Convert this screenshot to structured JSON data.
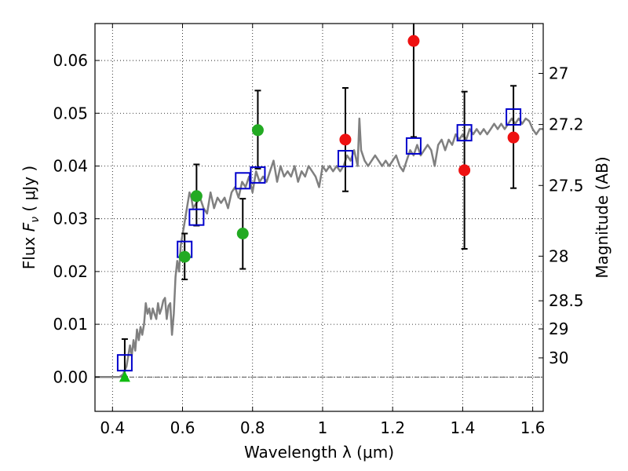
{
  "chart_data": {
    "type": "scatter",
    "xlabel": "Wavelength  λ (μm)",
    "ylabel": "Flux  F_ν  ( μJy )",
    "y2label": "Magnitude (AB)",
    "xlim": [
      0.35,
      1.63
    ],
    "ylim": [
      -0.0065,
      0.067
    ],
    "grid": true,
    "x_ticks": [
      {
        "value": 0.4,
        "label": "0.4"
      },
      {
        "value": 0.6,
        "label": "0.6"
      },
      {
        "value": 0.8,
        "label": "0.8"
      },
      {
        "value": 1.0,
        "label": "1"
      },
      {
        "value": 1.2,
        "label": "1.2"
      },
      {
        "value": 1.4,
        "label": "1.4"
      },
      {
        "value": 1.6,
        "label": "1.6"
      }
    ],
    "y_ticks": [
      {
        "value": 0.0,
        "label": "0.00"
      },
      {
        "value": 0.01,
        "label": "0.01"
      },
      {
        "value": 0.02,
        "label": "0.02"
      },
      {
        "value": 0.03,
        "label": "0.03"
      },
      {
        "value": 0.04,
        "label": "0.04"
      },
      {
        "value": 0.05,
        "label": "0.05"
      },
      {
        "value": 0.06,
        "label": "0.06"
      }
    ],
    "mag_ticks": [
      {
        "value": 27,
        "label": "27"
      },
      {
        "value": 27.2,
        "label": "27.2"
      },
      {
        "value": 27.5,
        "label": "27.5"
      },
      {
        "value": 28,
        "label": "28"
      },
      {
        "value": 28.5,
        "label": "28.5"
      },
      {
        "value": 29,
        "label": "29"
      },
      {
        "value": 30,
        "label": "30"
      }
    ],
    "model_spectrum": {
      "color": "#808080",
      "x": [
        0.35,
        0.42,
        0.43,
        0.44,
        0.45,
        0.455,
        0.46,
        0.465,
        0.47,
        0.475,
        0.48,
        0.485,
        0.49,
        0.495,
        0.5,
        0.505,
        0.51,
        0.515,
        0.52,
        0.525,
        0.53,
        0.535,
        0.54,
        0.545,
        0.55,
        0.555,
        0.56,
        0.565,
        0.57,
        0.575,
        0.58,
        0.585,
        0.59,
        0.595,
        0.6,
        0.605,
        0.61,
        0.615,
        0.62,
        0.625,
        0.63,
        0.64,
        0.65,
        0.66,
        0.67,
        0.68,
        0.69,
        0.7,
        0.71,
        0.72,
        0.73,
        0.74,
        0.75,
        0.76,
        0.77,
        0.78,
        0.79,
        0.8,
        0.81,
        0.82,
        0.83,
        0.84,
        0.85,
        0.86,
        0.87,
        0.88,
        0.89,
        0.9,
        0.91,
        0.92,
        0.93,
        0.94,
        0.95,
        0.96,
        0.97,
        0.98,
        0.99,
        1.0,
        1.01,
        1.02,
        1.03,
        1.04,
        1.05,
        1.06,
        1.07,
        1.08,
        1.09,
        1.1,
        1.105,
        1.11,
        1.12,
        1.13,
        1.14,
        1.15,
        1.16,
        1.17,
        1.18,
        1.19,
        1.2,
        1.21,
        1.22,
        1.23,
        1.24,
        1.25,
        1.26,
        1.27,
        1.28,
        1.29,
        1.3,
        1.31,
        1.32,
        1.33,
        1.34,
        1.35,
        1.36,
        1.37,
        1.38,
        1.39,
        1.4,
        1.41,
        1.42,
        1.43,
        1.44,
        1.45,
        1.46,
        1.47,
        1.48,
        1.49,
        1.5,
        1.51,
        1.52,
        1.53,
        1.54,
        1.55,
        1.56,
        1.57,
        1.58,
        1.59,
        1.6,
        1.61,
        1.62,
        1.63
      ],
      "y": [
        0.0,
        0.0,
        0.0005,
        0.002,
        0.006,
        0.004,
        0.007,
        0.005,
        0.009,
        0.007,
        0.0095,
        0.008,
        0.01,
        0.014,
        0.012,
        0.013,
        0.011,
        0.013,
        0.012,
        0.011,
        0.014,
        0.012,
        0.013,
        0.0145,
        0.015,
        0.011,
        0.0135,
        0.014,
        0.008,
        0.012,
        0.019,
        0.022,
        0.02,
        0.025,
        0.027,
        0.029,
        0.031,
        0.033,
        0.035,
        0.034,
        0.032,
        0.033,
        0.034,
        0.032,
        0.031,
        0.035,
        0.032,
        0.034,
        0.033,
        0.034,
        0.032,
        0.035,
        0.036,
        0.034,
        0.037,
        0.036,
        0.038,
        0.035,
        0.039,
        0.037,
        0.038,
        0.037,
        0.039,
        0.041,
        0.037,
        0.04,
        0.038,
        0.039,
        0.038,
        0.04,
        0.037,
        0.039,
        0.038,
        0.04,
        0.039,
        0.038,
        0.036,
        0.04,
        0.039,
        0.04,
        0.039,
        0.04,
        0.039,
        0.04,
        0.042,
        0.041,
        0.043,
        0.04,
        0.049,
        0.043,
        0.041,
        0.04,
        0.041,
        0.042,
        0.041,
        0.04,
        0.041,
        0.04,
        0.041,
        0.042,
        0.04,
        0.039,
        0.041,
        0.043,
        0.042,
        0.044,
        0.042,
        0.043,
        0.044,
        0.043,
        0.04,
        0.044,
        0.045,
        0.043,
        0.045,
        0.044,
        0.046,
        0.045,
        0.046,
        0.045,
        0.047,
        0.046,
        0.047,
        0.046,
        0.047,
        0.046,
        0.047,
        0.048,
        0.047,
        0.048,
        0.047,
        0.048,
        0.049,
        0.048,
        0.049,
        0.048,
        0.049,
        0.0485,
        0.047,
        0.046,
        0.047,
        0.047
      ]
    },
    "series": [
      {
        "marker": "square",
        "color": "#0000cc",
        "points": [
          {
            "x": 0.435,
            "y": 0.0027
          },
          {
            "x": 0.606,
            "y": 0.0242
          },
          {
            "x": 0.64,
            "y": 0.0303
          },
          {
            "x": 0.772,
            "y": 0.0372
          },
          {
            "x": 0.815,
            "y": 0.0383
          },
          {
            "x": 1.065,
            "y": 0.0414
          },
          {
            "x": 1.26,
            "y": 0.0438
          },
          {
            "x": 1.405,
            "y": 0.0463
          },
          {
            "x": 1.545,
            "y": 0.0493
          }
        ]
      },
      {
        "marker": "circle",
        "color": "#22aa22",
        "points": [
          {
            "x": 0.606,
            "y": 0.0228,
            "err_low": 0.0185,
            "err_high": 0.0272
          },
          {
            "x": 0.64,
            "y": 0.0343,
            "err_low": 0.0287,
            "err_high": 0.0403
          },
          {
            "x": 0.772,
            "y": 0.0272,
            "err_low": 0.0205,
            "err_high": 0.0338
          },
          {
            "x": 0.815,
            "y": 0.0468,
            "err_low": 0.0395,
            "err_high": 0.0543
          }
        ]
      },
      {
        "marker": "circle",
        "color": "#ee1111",
        "points": [
          {
            "x": 1.065,
            "y": 0.045,
            "err_low": 0.0352,
            "err_high": 0.0548
          },
          {
            "x": 1.26,
            "y": 0.0637,
            "err_low": 0.0455,
            "err_high": 0.0685
          },
          {
            "x": 1.405,
            "y": 0.0392,
            "err_low": 0.0243,
            "err_high": 0.0541
          },
          {
            "x": 1.545,
            "y": 0.0454,
            "err_low": 0.0358,
            "err_high": 0.0552
          }
        ]
      },
      {
        "marker": "triangle",
        "color": "#11bb11",
        "points": [
          {
            "x": 0.435,
            "y": 0.0,
            "err_low": 0.0,
            "err_high": 0.0072
          }
        ]
      }
    ]
  }
}
